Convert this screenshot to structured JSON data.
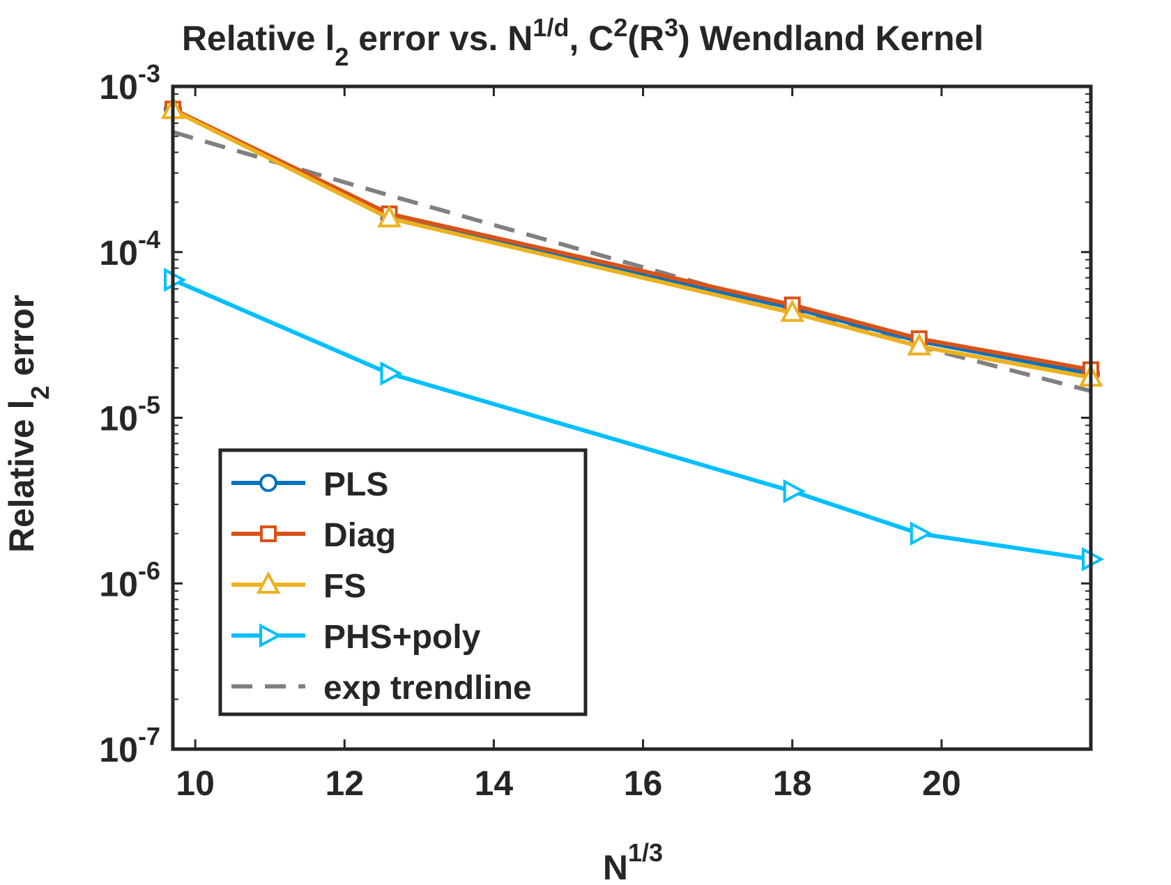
{
  "chart_data": {
    "type": "line",
    "title": {
      "prefix": "Relative l",
      "sub": "2",
      "middle": " error vs. N",
      "sup1": "1/d",
      "comma": ", C",
      "sup2": "2",
      "paren": "(R",
      "sup3": "3",
      "suffix": ") Wendland Kernel"
    },
    "xlabel": {
      "base": "N",
      "sup": "1/3"
    },
    "ylabel": {
      "prefix": "Relative l",
      "sub": "2",
      "suffix": " error"
    },
    "xscale": "linear",
    "yscale": "log",
    "xlim": [
      9.7,
      22.0
    ],
    "ylim": [
      1e-07,
      0.001
    ],
    "xticks": [
      10,
      12,
      14,
      16,
      18,
      20
    ],
    "xtick_labels": [
      "10",
      "12",
      "14",
      "16",
      "18",
      "20"
    ],
    "yticks": [
      {
        "value": 1e-07,
        "base": "10",
        "exp": "-7"
      },
      {
        "value": 1e-06,
        "base": "10",
        "exp": "-6"
      },
      {
        "value": 1e-05,
        "base": "10",
        "exp": "-5"
      },
      {
        "value": 0.0001,
        "base": "10",
        "exp": "-4"
      },
      {
        "value": 0.001,
        "base": "10",
        "exp": "-3"
      }
    ],
    "legend_position": "bottom-left",
    "series": [
      {
        "name": "PLS",
        "color": "#0072BD",
        "marker": "circle",
        "style": "solid",
        "x": [
          9.7,
          12.6,
          18.0,
          19.7,
          22.0
        ],
        "y": [
          0.00073,
          0.00016,
          4.6e-05,
          2.9e-05,
          1.85e-05
        ]
      },
      {
        "name": "Diag",
        "color": "#D95319",
        "marker": "square",
        "style": "solid",
        "x": [
          9.7,
          12.6,
          18.0,
          19.7,
          22.0
        ],
        "y": [
          0.00073,
          0.00017,
          4.8e-05,
          3e-05,
          1.95e-05
        ]
      },
      {
        "name": "FS",
        "color": "#EDB120",
        "marker": "triangle-up",
        "style": "solid",
        "x": [
          9.7,
          12.6,
          18.0,
          19.7,
          22.0
        ],
        "y": [
          0.00072,
          0.00016,
          4.3e-05,
          2.7e-05,
          1.75e-05
        ]
      },
      {
        "name": "PHS+poly",
        "color": "#00BFFF",
        "marker": "triangle-right",
        "style": "solid",
        "x": [
          9.7,
          12.6,
          18.0,
          19.7,
          22.0
        ],
        "y": [
          6.8e-05,
          1.85e-05,
          3.6e-06,
          2e-06,
          1.4e-06
        ]
      },
      {
        "name": "exp trendline",
        "color": "#808080",
        "marker": "none",
        "style": "dashed",
        "x": [
          9.7,
          12.6,
          18.0,
          19.7,
          22.0
        ],
        "y": [
          0.00053,
          0.00022,
          4.5e-05,
          2.7e-05,
          1.45e-05
        ]
      }
    ]
  }
}
